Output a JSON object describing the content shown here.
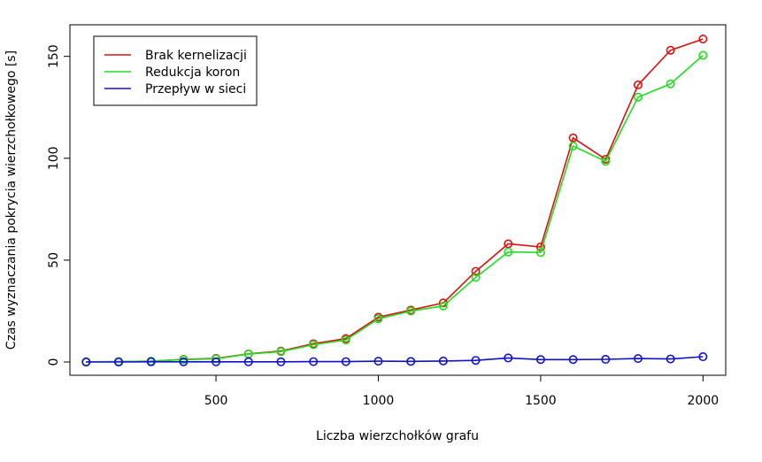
{
  "chart_data": {
    "type": "line",
    "xlabel": "Liczba wierzchołków grafu",
    "ylabel": "Czas wyznaczania pokrycia wierzchołkowego [s]",
    "x": [
      100,
      200,
      300,
      400,
      500,
      600,
      700,
      800,
      900,
      1000,
      1100,
      1200,
      1300,
      1400,
      1500,
      1600,
      1700,
      1800,
      1900,
      2000
    ],
    "xlim": [
      50,
      2070
    ],
    "ylim": [
      -6.5,
      165.5
    ],
    "xticks": [
      500,
      1000,
      1500,
      2000
    ],
    "yticks": [
      0,
      50,
      100,
      150
    ],
    "grid": false,
    "legend_position": "top-left",
    "series": [
      {
        "name": "Brak kernelizacji",
        "color": "#dd1111",
        "values": [
          0.1,
          0.2,
          0.4,
          1.3,
          1.8,
          4.0,
          5.4,
          9.0,
          11.5,
          22.0,
          25.5,
          29.0,
          44.5,
          58.0,
          56.5,
          110.0,
          99.5,
          136.0,
          153.0,
          158.5
        ]
      },
      {
        "name": "Redukcja koron",
        "color": "#22dd22",
        "values": [
          0.1,
          0.2,
          0.4,
          1.2,
          1.6,
          3.9,
          5.1,
          8.5,
          10.8,
          21.2,
          25.0,
          27.5,
          41.5,
          54.0,
          53.8,
          106.0,
          98.5,
          130.0,
          136.5,
          150.5
        ]
      },
      {
        "name": "Przepływ w sieci",
        "color": "#1111cc",
        "values": [
          0.0,
          0.0,
          0.1,
          0.1,
          0.1,
          0.1,
          0.1,
          0.2,
          0.2,
          0.4,
          0.3,
          0.5,
          0.8,
          2.0,
          1.2,
          1.2,
          1.3,
          1.7,
          1.5,
          2.6
        ]
      }
    ]
  }
}
